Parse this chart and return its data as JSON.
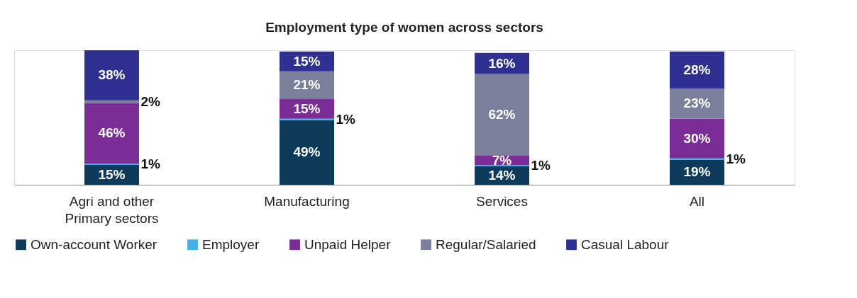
{
  "chart_data": {
    "type": "bar",
    "title": "Employment type of women across sectors",
    "categories": [
      "Agri and other Primary sectors",
      "Manufacturing",
      "Services",
      "All"
    ],
    "stacked": true,
    "ylim": [
      0,
      102
    ],
    "tick_labels": "x",
    "grid": false,
    "legend": "bottom",
    "series": [
      {
        "name": "Own-account Worker",
        "color": "#0e3a5b",
        "values": [
          15,
          49,
          14,
          19
        ],
        "value_labels": [
          "15%",
          "49%",
          "14%",
          "19%"
        ]
      },
      {
        "name": "Employer",
        "color": "#45b0e6",
        "values": [
          1,
          1,
          1,
          1
        ],
        "value_labels": [
          "1%",
          "1%",
          "1%",
          "1%"
        ]
      },
      {
        "name": "Unpaid Helper",
        "color": "#7a2d96",
        "values": [
          46,
          15,
          7,
          30
        ],
        "value_labels": [
          "46%",
          "15%",
          "7%",
          "30%"
        ]
      },
      {
        "name": "Regular/Salaried",
        "color": "#7b7f9b",
        "values": [
          2,
          21,
          62,
          23
        ],
        "value_labels": [
          "2%",
          "21%",
          "62%",
          "23%"
        ]
      },
      {
        "name": "Casual Labour",
        "color": "#2e3192",
        "values": [
          38,
          15,
          16,
          28
        ],
        "value_labels": [
          "38%",
          "15%",
          "16%",
          "28%"
        ]
      }
    ]
  }
}
